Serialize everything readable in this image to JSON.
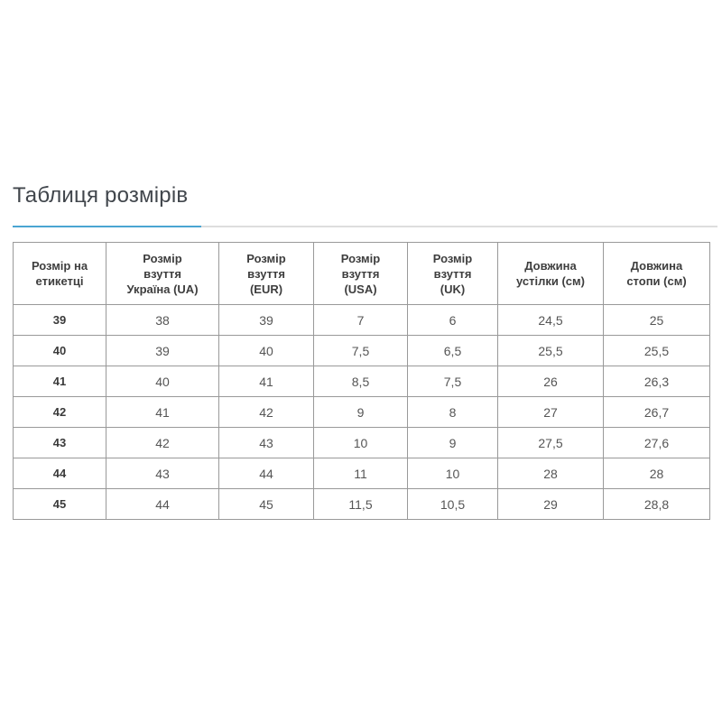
{
  "page": {
    "title": "Таблиця розмірів"
  },
  "table": {
    "headers": [
      [
        "Розмір на",
        "етикетці"
      ],
      [
        "Розмір",
        "взуття",
        "Україна (UA)"
      ],
      [
        "Розмір",
        "взуття",
        "(EUR)"
      ],
      [
        "Розмір",
        "взуття",
        "(USA)"
      ],
      [
        "Розмір",
        "взуття",
        "(UK)"
      ],
      [
        "Довжина",
        "устілки (см)"
      ],
      [
        "Довжина",
        "стопи (см)"
      ]
    ],
    "rows": [
      [
        "39",
        "38",
        "39",
        "7",
        "6",
        "24,5",
        "25"
      ],
      [
        "40",
        "39",
        "40",
        "7,5",
        "6,5",
        "25,5",
        "25,5"
      ],
      [
        "41",
        "40",
        "41",
        "8,5",
        "7,5",
        "26",
        "26,3"
      ],
      [
        "42",
        "41",
        "42",
        "9",
        "8",
        "27",
        "26,7"
      ],
      [
        "43",
        "42",
        "43",
        "10",
        "9",
        "27,5",
        "27,6"
      ],
      [
        "44",
        "43",
        "44",
        "11",
        "10",
        "28",
        "28"
      ],
      [
        "45",
        "44",
        "45",
        "11,5",
        "10,5",
        "29",
        "28,8"
      ]
    ]
  },
  "colors": {
    "accent_line": "#4aa5d2",
    "divider_line": "#dddddd",
    "table_border": "#999999",
    "title_text": "#41464c",
    "header_text": "#3e3e3e",
    "cell_text": "#555555"
  }
}
